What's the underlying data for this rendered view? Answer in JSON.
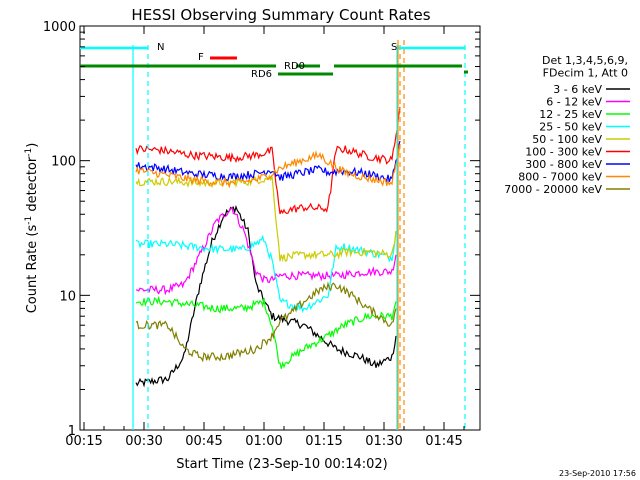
{
  "chart_data": {
    "type": "line",
    "title": "HESSI Observing Summary Count Rates",
    "xlabel": "Start Time (23-Sep-10 00:14:02)",
    "ylabel_main": "Count Rate (s",
    "ylabel_sup1": "-1",
    "ylabel_mid": " detector",
    "ylabel_sup2": "-1",
    "ylabel_end": ")",
    "ylog": true,
    "ylim": [
      1,
      1000
    ],
    "xlim_min": [
      14,
      114
    ],
    "x_ticks": [
      {
        "min": 15,
        "label": "00:15"
      },
      {
        "min": 30,
        "label": "00:30"
      },
      {
        "min": 45,
        "label": "00:45"
      },
      {
        "min": 60,
        "label": "01:00"
      },
      {
        "min": 75,
        "label": "01:15"
      },
      {
        "min": 90,
        "label": "01:30"
      },
      {
        "min": 105,
        "label": "01:45"
      }
    ],
    "y_ticks": [
      {
        "value": 1,
        "label": "1"
      },
      {
        "value": 10,
        "label": "10"
      },
      {
        "value": 100,
        "label": "100"
      },
      {
        "value": 1000,
        "label": "1000"
      }
    ],
    "legend_header": [
      "Det 1,3,4,5,6,9,",
      "FDecim 1, Att 0"
    ],
    "legend_position": "right",
    "series": [
      {
        "name": "3 - 6 keV",
        "color": "#000000",
        "x": [
          28,
          36,
          40,
          44,
          47,
          50,
          53,
          56,
          58,
          62,
          70,
          78,
          84,
          88,
          92,
          93
        ],
        "y": [
          2.2,
          2.4,
          3.5,
          12,
          25,
          40,
          45,
          30,
          12,
          7,
          6,
          4,
          3.5,
          3,
          3.5,
          5
        ]
      },
      {
        "name": "6 - 12 keV",
        "color": "#ff00ff",
        "x": [
          28,
          36,
          40,
          44,
          48,
          52,
          55,
          58,
          60,
          62,
          64,
          70,
          78,
          86,
          92,
          93
        ],
        "y": [
          11,
          11,
          12,
          20,
          35,
          45,
          30,
          15,
          13,
          13,
          14,
          14,
          14,
          15,
          15,
          20
        ]
      },
      {
        "name": "12 - 25 keV",
        "color": "#00ff00",
        "x": [
          28,
          36,
          42,
          48,
          55,
          60,
          62,
          64,
          70,
          76,
          80,
          86,
          92,
          93
        ],
        "y": [
          9,
          9,
          8.5,
          8,
          8,
          9,
          6,
          3,
          4,
          5,
          6,
          7,
          7,
          9
        ]
      },
      {
        "name": "25 - 50 keV",
        "color": "#00ffff",
        "x": [
          28,
          36,
          42,
          48,
          55,
          60,
          62,
          64,
          70,
          76,
          78,
          80,
          86,
          92,
          93
        ],
        "y": [
          24,
          24,
          23,
          22,
          22,
          26,
          18,
          9,
          8,
          10,
          22,
          23,
          21,
          19,
          30
        ]
      },
      {
        "name": "50 - 100 keV",
        "color": "#cccc00",
        "x": [
          28,
          36,
          46,
          56,
          62,
          64,
          70,
          76,
          78,
          80,
          86,
          92,
          93
        ],
        "y": [
          70,
          70,
          68,
          70,
          75,
          19,
          20,
          20,
          20,
          21,
          21,
          20,
          30
        ]
      },
      {
        "name": "100 - 300 keV",
        "color": "#ff0000",
        "x": [
          28,
          34,
          42,
          52,
          58,
          62,
          64,
          66,
          70,
          76,
          78,
          80,
          86,
          92,
          94
        ],
        "y": [
          122,
          120,
          110,
          105,
          110,
          118,
          40,
          43,
          45,
          44,
          120,
          122,
          108,
          100,
          250
        ]
      },
      {
        "name": "300 - 800 keV",
        "color": "#0000ff",
        "x": [
          28,
          34,
          42,
          52,
          58,
          62,
          64,
          70,
          74,
          76,
          80,
          86,
          92,
          94
        ],
        "y": [
          92,
          88,
          80,
          76,
          80,
          86,
          75,
          82,
          86,
          82,
          84,
          80,
          72,
          140
        ]
      },
      {
        "name": "800 - 7000 keV",
        "color": "#ff8800",
        "x": [
          28,
          34,
          42,
          52,
          58,
          62,
          64,
          70,
          74,
          76,
          80,
          86,
          92,
          94
        ],
        "y": [
          85,
          80,
          72,
          68,
          72,
          80,
          88,
          102,
          110,
          98,
          82,
          74,
          68,
          130
        ]
      },
      {
        "name": "7000 - 20000 keV",
        "color": "#808000",
        "x": [
          28,
          32,
          36,
          40,
          44,
          50,
          58,
          62,
          64,
          66,
          70,
          74,
          78,
          82,
          86,
          92,
          93
        ],
        "y": [
          6,
          6,
          6,
          4,
          3.5,
          3.5,
          4,
          5,
          6.5,
          7,
          9,
          11,
          12,
          10,
          8,
          6,
          8
        ]
      }
    ],
    "orbit_markers": [
      {
        "label": "N",
        "color": "#00ffff",
        "x_min": 31
      },
      {
        "label": "S",
        "color": "#ff8800",
        "x_min": 94
      }
    ],
    "flags": [
      {
        "label": "F",
        "color": "#ff0000"
      },
      {
        "label": "RD0",
        "color": "#008800"
      },
      {
        "label": "RD6",
        "color": "#008800"
      }
    ],
    "timestamp": "23-Sep-2010 17:56"
  }
}
